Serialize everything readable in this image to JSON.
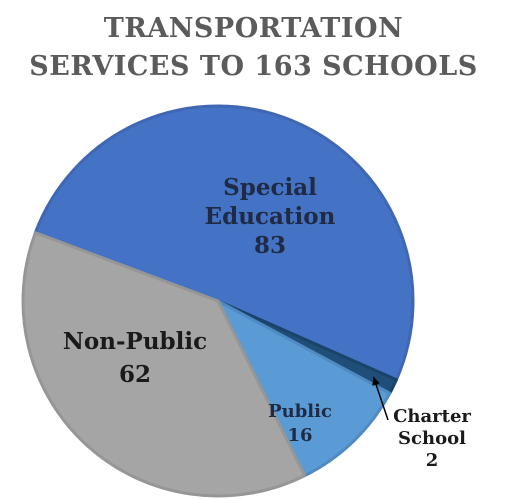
{
  "chart_data": {
    "type": "pie",
    "title_lines": [
      "TRANSPORTATION",
      "SERVICES TO 163 SCHOOLS"
    ],
    "slices": [
      {
        "label_lines": [
          "Special",
          "Education"
        ],
        "value": 83,
        "value_text": "83",
        "color": "#4472c4",
        "stroke": "#3f67b3"
      },
      {
        "label_lines": [
          "Charter",
          "School"
        ],
        "value": 2,
        "value_text": "2",
        "color": "#1f4e79",
        "stroke": "#1a436a"
      },
      {
        "label_lines": [
          "Public"
        ],
        "value": 16,
        "value_text": "16",
        "color": "#5b9bd5",
        "stroke": "#4f8ac2"
      },
      {
        "label_lines": [
          "Non-Public"
        ],
        "value": 62,
        "value_text": "62",
        "color": "#a5a5a5",
        "stroke": "#969696"
      }
    ],
    "total": 163,
    "legend": "none"
  }
}
